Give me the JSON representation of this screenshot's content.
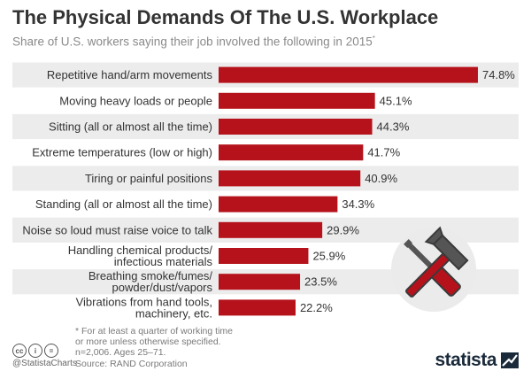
{
  "header": {
    "title": "The Physical Demands Of The U.S. Workplace",
    "subtitle": "Share of U.S. workers saying  their job involved the following in 2015",
    "subtitle_mark": "*"
  },
  "chart_data": {
    "type": "bar",
    "orientation": "horizontal",
    "categories": [
      [
        "Repetitive hand/arm movements"
      ],
      [
        "Moving heavy loads or people"
      ],
      [
        "Sitting (all or almost all the time)"
      ],
      [
        "Extreme temperatures (low or high)"
      ],
      [
        "Tiring or painful positions"
      ],
      [
        "Standing (all or almost all the time)"
      ],
      [
        "Noise so loud must raise voice to talk"
      ],
      [
        "Handling chemical products/",
        "infectious materials"
      ],
      [
        "Breathing smoke/fumes/",
        "powder/dust/vapors"
      ],
      [
        "Vibrations from hand tools,",
        "machinery, etc."
      ]
    ],
    "values": [
      74.8,
      45.1,
      44.3,
      41.7,
      40.9,
      34.3,
      29.9,
      25.9,
      23.5,
      22.2
    ],
    "value_labels": [
      "74.8%",
      "45.1%",
      "44.3%",
      "41.7%",
      "40.9%",
      "34.3%",
      "29.9%",
      "25.9%",
      "23.5%",
      "22.2%"
    ],
    "bar_color": "#b5121b",
    "band_color": "#ececec",
    "grid": false,
    "legend": "none"
  },
  "footer": {
    "footnote": "* For at least a quarter of working time\n   or more unless otherwise specified.\nn=2,006. Ages 25–71.",
    "source": "Source: RAND Corporation",
    "handle": "@StatistaCharts",
    "brand": "statista",
    "badges": [
      "cc",
      "i",
      "="
    ]
  },
  "icon": {
    "name": "hammer-and-screwdriver-icon",
    "circle_color": "#ebebeb",
    "accent": "#b5121b"
  }
}
